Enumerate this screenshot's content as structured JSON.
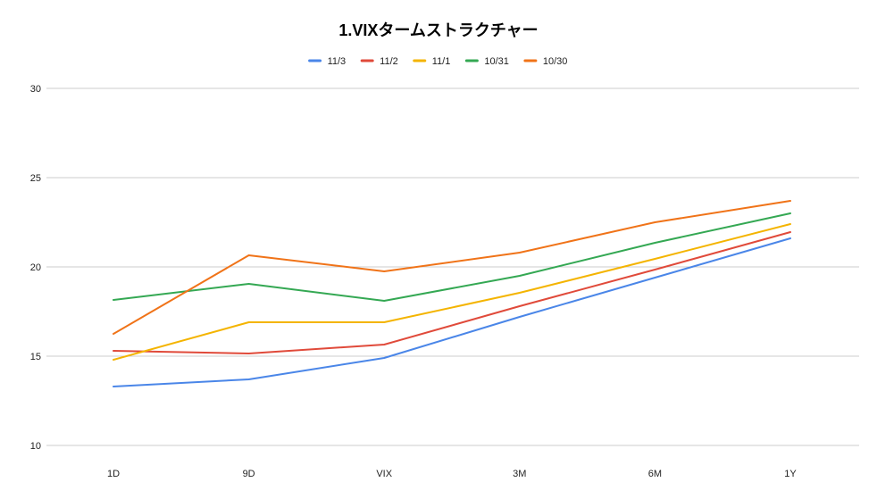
{
  "chart_data": {
    "type": "line",
    "title": "1.VIXタームストラクチャー",
    "xlabel": "",
    "ylabel": "",
    "categories": [
      "1D",
      "9D",
      "VIX",
      "3M",
      "6M",
      "1Y"
    ],
    "ylim": [
      10,
      30
    ],
    "yticks": [
      "10",
      "15",
      "20",
      "25",
      "30"
    ],
    "grid": true,
    "legend_position": "top",
    "series": [
      {
        "name": "11/3",
        "color": "#4a86e8",
        "values": [
          13.3,
          13.7,
          14.9,
          17.2,
          19.4,
          21.6
        ]
      },
      {
        "name": "11/2",
        "color": "#e04a3a",
        "values": [
          15.3,
          15.15,
          15.65,
          17.8,
          19.85,
          21.95
        ]
      },
      {
        "name": "11/1",
        "color": "#f4b400",
        "values": [
          14.8,
          16.9,
          16.9,
          18.55,
          20.45,
          22.4
        ]
      },
      {
        "name": "10/31",
        "color": "#34a853",
        "values": [
          18.15,
          19.05,
          18.1,
          19.5,
          21.35,
          23.0
        ]
      },
      {
        "name": "10/30",
        "color": "#f07318",
        "values": [
          16.25,
          20.65,
          19.75,
          20.8,
          22.5,
          23.7
        ]
      }
    ]
  }
}
